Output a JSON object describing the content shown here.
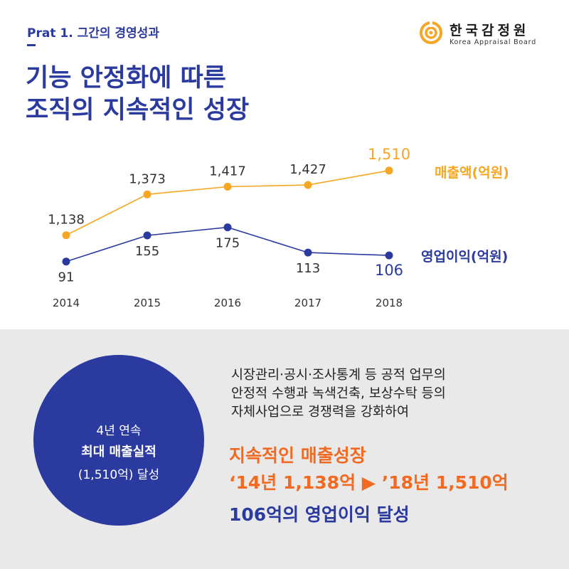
{
  "header": {
    "section_label": "Prat 1. 그간의 경영성과",
    "headline_line1": "기능 안정화에 따른",
    "headline_line2": "조직의 지속적인 성장"
  },
  "logo": {
    "name": "한국감정원",
    "sub": "Korea Appraisal Board"
  },
  "colors": {
    "navy": "#2b3a9e",
    "orange_line": "#f5a623",
    "orange_text": "#f26a21",
    "bottom_bg": "#e9e9ea"
  },
  "chart_data": {
    "type": "line",
    "categories": [
      "2014",
      "2015",
      "2016",
      "2017",
      "2018"
    ],
    "series": [
      {
        "name": "매출액(억원)",
        "values": [
          1138,
          1373,
          1417,
          1427,
          1510
        ],
        "labels": [
          "1,138",
          "1,373",
          "1,417",
          "1,427",
          "1,510"
        ]
      },
      {
        "name": "영업이익(억원)",
        "values": [
          91,
          155,
          175,
          113,
          106
        ],
        "labels": [
          "91",
          "155",
          "175",
          "113",
          "106"
        ]
      }
    ],
    "grid": false,
    "legend": "right"
  },
  "info": {
    "circle_line1": "4년 연속",
    "circle_line2": "최대 매출실적",
    "circle_line3": "(1,510억) 달성",
    "desc_line1": "시장관리·공시·조사통계 등 공적 업무의",
    "desc_line2": "안정적 수행과 녹색건축, 보상수탁 등의",
    "desc_line3": "자체사업으로 경쟁력을 강화하여",
    "highlight_line1": "지속적인 매출성장",
    "highlight_line2": "‘14년 1,138억 ▶ ’18년 1,510억",
    "highlight_line3": "106억의 영업이익 달성"
  }
}
